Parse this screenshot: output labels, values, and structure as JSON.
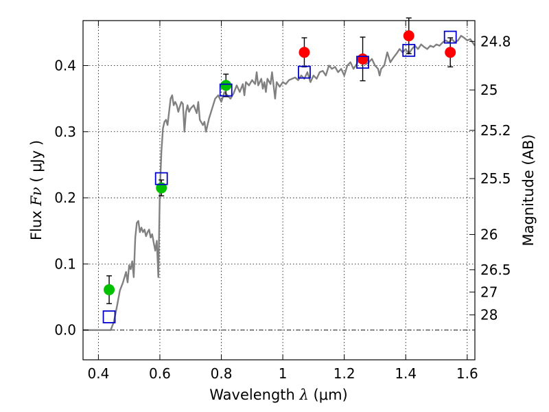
{
  "chart_data": {
    "type": "scatter",
    "title": "",
    "xlabel": "Wavelength",
    "xlabel_symbol": "λ",
    "xlabel_unit": "(μm)",
    "ylabel": "Flux",
    "ylabel_symbol": "Fν",
    "ylabel_unit": "( μJy )",
    "ylabel_right": "Magnitude (AB)",
    "xlim": [
      0.35,
      1.625
    ],
    "ylim": [
      -0.045,
      0.468
    ],
    "grid": true,
    "x_ticks": [
      0.4,
      0.6,
      0.8,
      1.0,
      1.2,
      1.4,
      1.6
    ],
    "x_tick_labels": [
      "0.4",
      "0.6",
      "0.8",
      "1",
      "1.2",
      "1.4",
      "1.6"
    ],
    "y_ticks": [
      0.0,
      0.1,
      0.2,
      0.3,
      0.4
    ],
    "y_tick_labels": [
      "0.0",
      "0.1",
      "0.2",
      "0.3",
      "0.4"
    ],
    "right_ticks": [
      {
        "mag": 24.8,
        "label": "24.8"
      },
      {
        "mag": 25.0,
        "label": "25"
      },
      {
        "mag": 25.2,
        "label": "25.2"
      },
      {
        "mag": 25.5,
        "label": "25.5"
      },
      {
        "mag": 26.0,
        "label": "26"
      },
      {
        "mag": 26.5,
        "label": "26.5"
      },
      {
        "mag": 27.0,
        "label": "27"
      },
      {
        "mag": 28.0,
        "label": "28"
      }
    ],
    "colors": {
      "model": "#808080",
      "green": "#00c000",
      "red": "#ff0000",
      "square": "#0000cc",
      "errorbar": "#000000"
    },
    "series": [
      {
        "kind": "line",
        "points": [
          [
            0.35,
            0.0
          ],
          [
            0.44,
            0.0
          ],
          [
            0.45,
            0.012
          ],
          [
            0.46,
            0.035
          ],
          [
            0.47,
            0.06
          ],
          [
            0.48,
            0.072
          ],
          [
            0.49,
            0.088
          ],
          [
            0.495,
            0.072
          ],
          [
            0.5,
            0.098
          ],
          [
            0.505,
            0.092
          ],
          [
            0.51,
            0.104
          ],
          [
            0.515,
            0.08
          ],
          [
            0.52,
            0.14
          ],
          [
            0.525,
            0.162
          ],
          [
            0.53,
            0.165
          ],
          [
            0.535,
            0.148
          ],
          [
            0.54,
            0.155
          ],
          [
            0.545,
            0.148
          ],
          [
            0.55,
            0.152
          ],
          [
            0.555,
            0.142
          ],
          [
            0.56,
            0.148
          ],
          [
            0.565,
            0.152
          ],
          [
            0.57,
            0.14
          ],
          [
            0.575,
            0.145
          ],
          [
            0.58,
            0.132
          ],
          [
            0.585,
            0.12
          ],
          [
            0.59,
            0.135
          ],
          [
            0.595,
            0.08
          ],
          [
            0.6,
            0.21
          ],
          [
            0.605,
            0.27
          ],
          [
            0.61,
            0.305
          ],
          [
            0.615,
            0.315
          ],
          [
            0.62,
            0.318
          ],
          [
            0.625,
            0.31
          ],
          [
            0.63,
            0.33
          ],
          [
            0.635,
            0.35
          ],
          [
            0.64,
            0.355
          ],
          [
            0.645,
            0.34
          ],
          [
            0.65,
            0.345
          ],
          [
            0.655,
            0.34
          ],
          [
            0.66,
            0.33
          ],
          [
            0.665,
            0.338
          ],
          [
            0.67,
            0.345
          ],
          [
            0.675,
            0.342
          ],
          [
            0.68,
            0.3
          ],
          [
            0.685,
            0.33
          ],
          [
            0.69,
            0.34
          ],
          [
            0.695,
            0.33
          ],
          [
            0.7,
            0.335
          ],
          [
            0.71,
            0.34
          ],
          [
            0.72,
            0.328
          ],
          [
            0.725,
            0.345
          ],
          [
            0.73,
            0.318
          ],
          [
            0.74,
            0.31
          ],
          [
            0.745,
            0.315
          ],
          [
            0.75,
            0.3
          ],
          [
            0.76,
            0.32
          ],
          [
            0.77,
            0.335
          ],
          [
            0.78,
            0.35
          ],
          [
            0.79,
            0.355
          ],
          [
            0.8,
            0.345
          ],
          [
            0.81,
            0.36
          ],
          [
            0.82,
            0.355
          ],
          [
            0.83,
            0.35
          ],
          [
            0.84,
            0.358
          ],
          [
            0.85,
            0.37
          ],
          [
            0.86,
            0.36
          ],
          [
            0.87,
            0.372
          ],
          [
            0.875,
            0.355
          ],
          [
            0.88,
            0.375
          ],
          [
            0.89,
            0.37
          ],
          [
            0.9,
            0.378
          ],
          [
            0.91,
            0.372
          ],
          [
            0.915,
            0.39
          ],
          [
            0.92,
            0.37
          ],
          [
            0.93,
            0.38
          ],
          [
            0.935,
            0.365
          ],
          [
            0.94,
            0.375
          ],
          [
            0.945,
            0.36
          ],
          [
            0.95,
            0.38
          ],
          [
            0.96,
            0.372
          ],
          [
            0.965,
            0.39
          ],
          [
            0.97,
            0.37
          ],
          [
            0.975,
            0.35
          ],
          [
            0.98,
            0.375
          ],
          [
            0.99,
            0.368
          ],
          [
            1.0,
            0.375
          ],
          [
            1.01,
            0.372
          ],
          [
            1.02,
            0.378
          ],
          [
            1.03,
            0.38
          ],
          [
            1.04,
            0.382
          ],
          [
            1.05,
            0.378
          ],
          [
            1.06,
            0.385
          ],
          [
            1.07,
            0.38
          ],
          [
            1.08,
            0.39
          ],
          [
            1.09,
            0.375
          ],
          [
            1.1,
            0.385
          ],
          [
            1.11,
            0.38
          ],
          [
            1.12,
            0.39
          ],
          [
            1.13,
            0.392
          ],
          [
            1.14,
            0.385
          ],
          [
            1.15,
            0.4
          ],
          [
            1.16,
            0.395
          ],
          [
            1.17,
            0.398
          ],
          [
            1.18,
            0.39
          ],
          [
            1.19,
            0.395
          ],
          [
            1.2,
            0.385
          ],
          [
            1.21,
            0.4
          ],
          [
            1.22,
            0.405
          ],
          [
            1.23,
            0.395
          ],
          [
            1.24,
            0.402
          ],
          [
            1.25,
            0.41
          ],
          [
            1.26,
            0.405
          ],
          [
            1.27,
            0.402
          ],
          [
            1.28,
            0.405
          ],
          [
            1.29,
            0.41
          ],
          [
            1.3,
            0.4
          ],
          [
            1.31,
            0.395
          ],
          [
            1.315,
            0.385
          ],
          [
            1.32,
            0.395
          ],
          [
            1.33,
            0.4
          ],
          [
            1.34,
            0.42
          ],
          [
            1.35,
            0.405
          ],
          [
            1.36,
            0.412
          ],
          [
            1.37,
            0.418
          ],
          [
            1.38,
            0.425
          ],
          [
            1.39,
            0.42
          ],
          [
            1.4,
            0.425
          ],
          [
            1.41,
            0.418
          ],
          [
            1.42,
            0.425
          ],
          [
            1.43,
            0.43
          ],
          [
            1.44,
            0.425
          ],
          [
            1.45,
            0.432
          ],
          [
            1.46,
            0.428
          ],
          [
            1.47,
            0.425
          ],
          [
            1.48,
            0.43
          ],
          [
            1.49,
            0.428
          ],
          [
            1.5,
            0.432
          ],
          [
            1.51,
            0.43
          ],
          [
            1.52,
            0.435
          ],
          [
            1.53,
            0.438
          ],
          [
            1.54,
            0.435
          ],
          [
            1.55,
            0.44
          ],
          [
            1.56,
            0.435
          ],
          [
            1.57,
            0.438
          ],
          [
            1.58,
            0.445
          ],
          [
            1.59,
            0.442
          ],
          [
            1.6,
            0.438
          ],
          [
            1.61,
            0.44
          ],
          [
            1.625,
            0.43
          ]
        ]
      },
      {
        "kind": "points-with-errors",
        "color": "green",
        "points": [
          {
            "x": 0.435,
            "y": 0.061,
            "err": 0.021
          },
          {
            "x": 0.605,
            "y": 0.215,
            "err": 0.012
          },
          {
            "x": 0.815,
            "y": 0.37,
            "err": 0.017
          }
        ]
      },
      {
        "kind": "points-with-errors",
        "color": "red",
        "points": [
          {
            "x": 1.07,
            "y": 0.42,
            "err": 0.022
          },
          {
            "x": 1.26,
            "y": 0.41,
            "err": 0.033
          },
          {
            "x": 1.41,
            "y": 0.445,
            "err": 0.027
          },
          {
            "x": 1.545,
            "y": 0.42,
            "err": 0.022
          }
        ]
      },
      {
        "kind": "open-squares",
        "color": "square",
        "points": [
          {
            "x": 0.435,
            "y": 0.02
          },
          {
            "x": 0.605,
            "y": 0.229
          },
          {
            "x": 0.815,
            "y": 0.363
          },
          {
            "x": 1.07,
            "y": 0.39
          },
          {
            "x": 1.26,
            "y": 0.405
          },
          {
            "x": 1.41,
            "y": 0.423
          },
          {
            "x": 1.545,
            "y": 0.443
          }
        ]
      }
    ]
  }
}
